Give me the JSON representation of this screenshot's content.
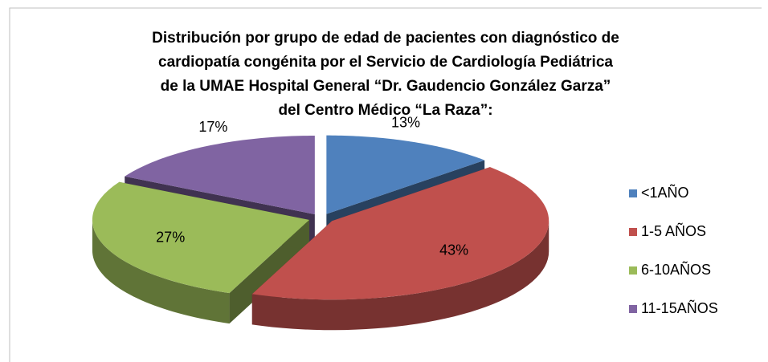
{
  "chart_data": {
    "type": "pie",
    "title": [
      "Distribución por grupo de edad de pacientes con diagnóstico de",
      "cardiopatía congénita por el Servicio de Cardiología Pediátrica",
      "de la UMAE Hospital General “Dr. Gaudencio González Garza”",
      "del Centro Médico “La Raza”:"
    ],
    "categories": [
      "<1AÑO",
      "1-5 AÑOS",
      "6-10AÑOS",
      "11-15AÑOS"
    ],
    "values": [
      13,
      43,
      27,
      17
    ],
    "value_labels": [
      "13%",
      "43%",
      "27%",
      "17%"
    ],
    "colors": [
      "#4f81bd",
      "#c0504d",
      "#9bbb59",
      "#8064a2"
    ],
    "legend": "right"
  }
}
